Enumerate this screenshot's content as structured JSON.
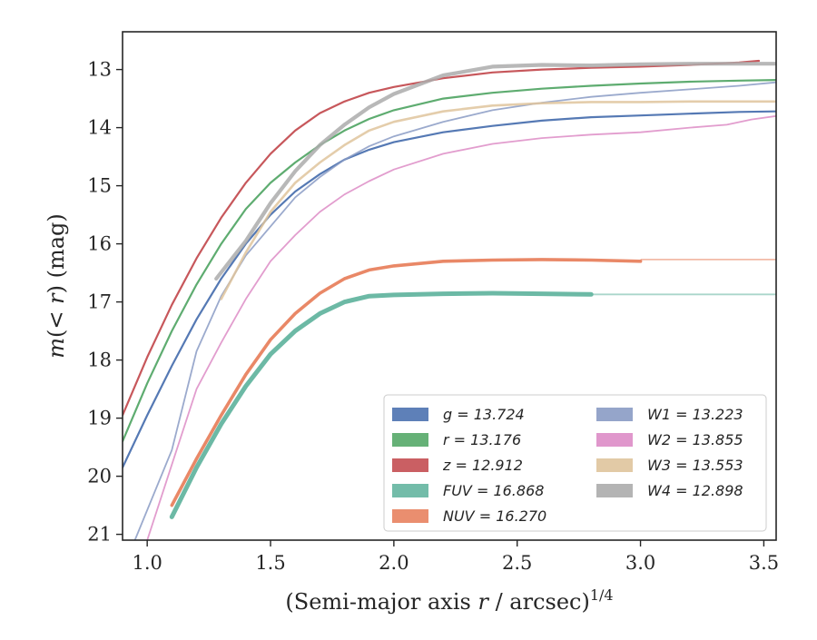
{
  "chart_data": {
    "type": "line",
    "xlabel": "(Semi-major axis r / arcsec)^1/4",
    "ylabel": "m(< r) (mag)",
    "xlim": [
      0.9,
      3.55
    ],
    "ylim": [
      21.1,
      12.35
    ],
    "y_inverted": true,
    "grid": false,
    "legend_placement": "lower-right",
    "x_ticks": [
      "1.0",
      "1.5",
      "2.0",
      "2.5",
      "3.0",
      "3.5"
    ],
    "y_ticks": [
      "13",
      "14",
      "15",
      "16",
      "17",
      "18",
      "19",
      "20",
      "21"
    ],
    "series": [
      {
        "name": "g = 13.724",
        "band": "g",
        "value": "13.724",
        "color": "#4c72b0",
        "x": [
          0.9,
          1.0,
          1.1,
          1.2,
          1.3,
          1.4,
          1.5,
          1.6,
          1.7,
          1.8,
          1.9,
          2.0,
          2.2,
          2.4,
          2.6,
          2.8,
          3.0,
          3.2,
          3.4,
          3.55
        ],
        "y": [
          19.85,
          18.95,
          18.1,
          17.3,
          16.6,
          16.0,
          15.5,
          15.1,
          14.8,
          14.55,
          14.38,
          14.25,
          14.08,
          13.97,
          13.88,
          13.82,
          13.79,
          13.76,
          13.73,
          13.72
        ]
      },
      {
        "name": "r = 13.176",
        "band": "r",
        "value": "13.176",
        "color": "#55a868",
        "x": [
          0.9,
          1.0,
          1.1,
          1.2,
          1.3,
          1.4,
          1.5,
          1.6,
          1.7,
          1.8,
          1.9,
          2.0,
          2.2,
          2.4,
          2.6,
          2.8,
          3.0,
          3.2,
          3.4,
          3.55
        ],
        "y": [
          19.4,
          18.4,
          17.5,
          16.7,
          16.0,
          15.4,
          14.95,
          14.6,
          14.3,
          14.05,
          13.85,
          13.7,
          13.5,
          13.4,
          13.33,
          13.28,
          13.24,
          13.21,
          13.19,
          13.18
        ]
      },
      {
        "name": "z = 12.912",
        "band": "z",
        "value": "12.912",
        "color": "#c44e52",
        "x": [
          0.9,
          1.0,
          1.1,
          1.2,
          1.3,
          1.4,
          1.5,
          1.6,
          1.7,
          1.8,
          1.9,
          2.0,
          2.2,
          2.4,
          2.6,
          2.8,
          3.0,
          3.2,
          3.4,
          3.48
        ],
        "y": [
          18.95,
          17.95,
          17.05,
          16.25,
          15.55,
          14.95,
          14.45,
          14.05,
          13.75,
          13.55,
          13.4,
          13.3,
          13.15,
          13.05,
          13.0,
          12.97,
          12.95,
          12.92,
          12.88,
          12.85
        ]
      },
      {
        "name": "FUV = 16.868",
        "band": "FUV",
        "value": "16.868",
        "color": "#64b5a0",
        "x": [
          1.1,
          1.2,
          1.3,
          1.4,
          1.5,
          1.6,
          1.7,
          1.8,
          1.9,
          2.0,
          2.2,
          2.4,
          2.6,
          2.8
        ],
        "y": [
          20.7,
          19.85,
          19.1,
          18.45,
          17.9,
          17.5,
          17.2,
          17.0,
          16.9,
          16.88,
          16.86,
          16.85,
          16.86,
          16.87
        ],
        "extension": {
          "x": [
            2.8,
            3.55
          ],
          "y": [
            16.87,
            16.87
          ]
        }
      },
      {
        "name": "NUV = 16.270",
        "band": "NUV",
        "value": "16.270",
        "color": "#e8825f",
        "x": [
          1.1,
          1.2,
          1.3,
          1.4,
          1.5,
          1.6,
          1.7,
          1.8,
          1.9,
          2.0,
          2.2,
          2.4,
          2.6,
          2.8,
          3.0
        ],
        "y": [
          20.5,
          19.7,
          18.95,
          18.25,
          17.65,
          17.2,
          16.85,
          16.6,
          16.45,
          16.38,
          16.3,
          16.28,
          16.27,
          16.28,
          16.3
        ],
        "extension": {
          "x": [
            3.0,
            3.55
          ],
          "y": [
            16.27,
            16.27
          ]
        }
      },
      {
        "name": "W1 = 13.223",
        "band": "W1",
        "value": "13.223",
        "color": "#8a9bc4",
        "x": [
          0.95,
          1.1,
          1.2,
          1.3,
          1.4,
          1.5,
          1.6,
          1.7,
          1.8,
          1.9,
          2.0,
          2.2,
          2.4,
          2.6,
          2.8,
          3.0,
          3.2,
          3.4,
          3.55
        ],
        "y": [
          21.1,
          19.55,
          17.85,
          16.9,
          16.2,
          15.7,
          15.2,
          14.85,
          14.55,
          14.32,
          14.15,
          13.9,
          13.7,
          13.57,
          13.47,
          13.4,
          13.34,
          13.28,
          13.22
        ]
      },
      {
        "name": "W2 = 13.855",
        "band": "W2",
        "value": "13.855",
        "color": "#dd8cc6",
        "x": [
          1.0,
          1.1,
          1.2,
          1.3,
          1.4,
          1.5,
          1.6,
          1.7,
          1.8,
          1.9,
          2.0,
          2.2,
          2.4,
          2.6,
          2.8,
          3.0,
          3.2,
          3.35,
          3.45,
          3.55
        ],
        "y": [
          21.1,
          19.8,
          18.5,
          17.7,
          16.95,
          16.3,
          15.85,
          15.45,
          15.15,
          14.92,
          14.72,
          14.45,
          14.28,
          14.18,
          14.12,
          14.08,
          14.0,
          13.95,
          13.86,
          13.8
        ]
      },
      {
        "name": "W3 = 13.553",
        "band": "W3",
        "value": "13.553",
        "color": "#dfc49c",
        "x": [
          1.3,
          1.4,
          1.5,
          1.6,
          1.7,
          1.8,
          1.9,
          2.0,
          2.2,
          2.4,
          2.6,
          2.8,
          3.0,
          3.2,
          3.4,
          3.55
        ],
        "y": [
          16.95,
          16.15,
          15.45,
          14.95,
          14.6,
          14.3,
          14.05,
          13.9,
          13.72,
          13.62,
          13.58,
          13.56,
          13.56,
          13.55,
          13.55,
          13.55
        ]
      },
      {
        "name": "W4 = 12.898",
        "band": "W4",
        "value": "12.898",
        "color": "#acacac",
        "x": [
          1.28,
          1.4,
          1.5,
          1.6,
          1.7,
          1.8,
          1.9,
          2.0,
          2.2,
          2.4,
          2.6,
          2.8,
          3.0,
          3.2,
          3.4,
          3.55
        ],
        "y": [
          16.6,
          15.95,
          15.3,
          14.75,
          14.3,
          13.95,
          13.65,
          13.42,
          13.1,
          12.95,
          12.92,
          12.93,
          12.91,
          12.9,
          12.9,
          12.9
        ]
      }
    ]
  }
}
